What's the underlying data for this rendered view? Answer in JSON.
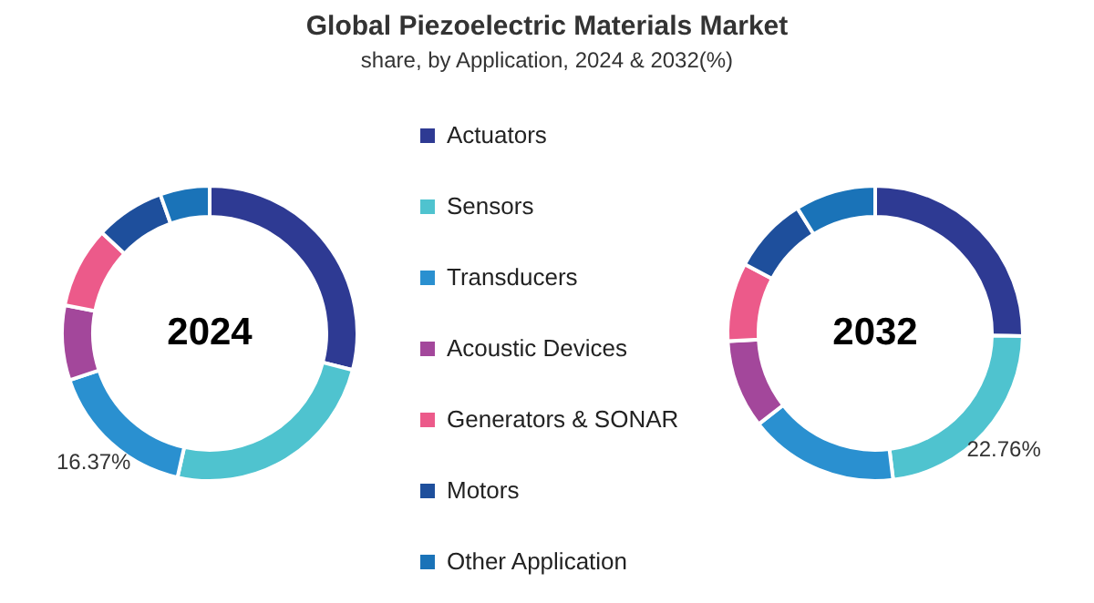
{
  "chart_data": {
    "type": "donut",
    "title": "Global Piezoelectric Materials Market",
    "subtitle": "share, by Application, 2024 & 2032(%)",
    "legend": "right",
    "categories": [
      "Actuators",
      "Sensors",
      "Transducers",
      "Acoustic Devices",
      "Generators & SONAR",
      "Motors",
      "Other Application"
    ],
    "colors": [
      "#2e3a93",
      "#4fc3cf",
      "#2a90d0",
      "#a3479b",
      "#ec5a8a",
      "#1e4f9c",
      "#1a73b8"
    ],
    "series": [
      {
        "name": "2024",
        "values": [
          29.0,
          24.5,
          16.37,
          8.2,
          8.9,
          7.6,
          5.43
        ],
        "value_labels": [
          null,
          null,
          "16.37%",
          null,
          null,
          null,
          null
        ]
      },
      {
        "name": "2032",
        "values": [
          25.3,
          22.76,
          16.4,
          9.7,
          8.6,
          8.4,
          8.84
        ],
        "value_labels": [
          null,
          "22.76%",
          null,
          null,
          null,
          null,
          null
        ]
      }
    ]
  }
}
